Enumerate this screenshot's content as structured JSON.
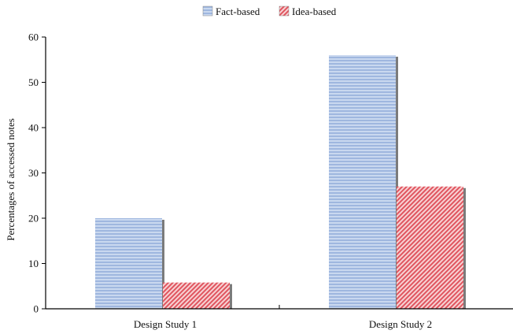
{
  "chart_data": {
    "type": "bar",
    "title": "",
    "xlabel": "",
    "ylabel": "Percentages of accessed notes",
    "ylim": [
      0,
      60
    ],
    "yticks": [
      0,
      10,
      20,
      30,
      40,
      50,
      60
    ],
    "grid": false,
    "legend_position": "top-center",
    "categories": [
      "Design Study 1",
      "Design Study 2"
    ],
    "series": [
      {
        "name": "Fact-based",
        "values": [
          20,
          56
        ],
        "color": "#a9c0e3",
        "pattern": "horizontal-lines"
      },
      {
        "name": "Idea-based",
        "values": [
          5.8,
          27
        ],
        "color": "#e06a72",
        "pattern": "diagonal-hatch"
      }
    ]
  }
}
